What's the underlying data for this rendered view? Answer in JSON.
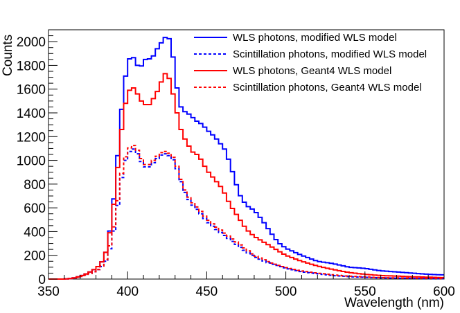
{
  "chart_data": {
    "type": "line",
    "style": "step-histogram",
    "title": "",
    "xlabel": "Wavelength (nm)",
    "ylabel": "Counts",
    "xlim": [
      350,
      600
    ],
    "ylim": [
      0,
      2100
    ],
    "x_ticks": [
      350,
      400,
      450,
      500,
      550,
      600
    ],
    "y_ticks": [
      0,
      200,
      400,
      600,
      800,
      1000,
      1200,
      1400,
      1600,
      1800,
      2000
    ],
    "legend_position": "top-right",
    "bin_width": 2.5,
    "series": [
      {
        "name": "WLS photons, modified WLS model",
        "color": "#0000ff",
        "dash": "solid",
        "x": [
          380,
          382.5,
          385,
          387.5,
          390,
          392.5,
          395,
          397.5,
          400,
          402.5,
          405,
          407.5,
          410,
          412.5,
          415,
          417.5,
          420,
          422.5,
          425,
          427.5,
          430,
          432.5,
          435,
          437.5,
          440,
          442.5,
          445,
          447.5,
          450,
          452.5,
          455,
          457.5,
          460,
          462.5,
          465,
          467.5,
          470,
          475,
          480,
          485,
          490,
          495,
          500,
          510,
          520,
          530,
          540,
          550,
          560,
          570,
          580,
          590,
          600
        ],
        "values": [
          90,
          120,
          170,
          280,
          530,
          820,
          1260,
          1600,
          1820,
          1890,
          1840,
          1760,
          1830,
          1870,
          1840,
          1920,
          1960,
          2020,
          2050,
          2000,
          1740,
          1480,
          1420,
          1400,
          1380,
          1340,
          1320,
          1300,
          1260,
          1230,
          1200,
          1160,
          1120,
          1070,
          950,
          860,
          730,
          620,
          580,
          500,
          400,
          310,
          260,
          200,
          150,
          130,
          100,
          90,
          70,
          60,
          50,
          40,
          35
        ]
      },
      {
        "name": "Scintillation photons, modified WLS model",
        "color": "#0000ff",
        "dash": "dashed",
        "x": [
          380,
          382.5,
          385,
          387.5,
          390,
          392.5,
          395,
          397.5,
          400,
          402.5,
          405,
          407.5,
          410,
          412.5,
          415,
          417.5,
          420,
          422.5,
          425,
          427.5,
          430,
          432.5,
          435,
          437.5,
          440,
          445,
          450,
          455,
          460,
          465,
          470,
          475,
          480,
          490,
          500,
          510,
          520,
          530,
          540,
          550,
          560,
          580,
          600
        ],
        "values": [
          70,
          90,
          120,
          180,
          330,
          480,
          760,
          950,
          1050,
          1100,
          1090,
          1020,
          960,
          930,
          960,
          1000,
          1030,
          1060,
          1050,
          1030,
          980,
          880,
          760,
          700,
          640,
          570,
          490,
          430,
          380,
          330,
          280,
          230,
          190,
          130,
          90,
          60,
          45,
          30,
          20,
          15,
          10,
          6,
          4
        ]
      },
      {
        "name": "WLS photons, Geant4 WLS model",
        "color": "#ff0000",
        "dash": "solid",
        "x": [
          380,
          382.5,
          385,
          387.5,
          390,
          392.5,
          395,
          397.5,
          400,
          402.5,
          405,
          407.5,
          410,
          412.5,
          415,
          417.5,
          420,
          422.5,
          425,
          427.5,
          430,
          432.5,
          435,
          437.5,
          440,
          445,
          450,
          455,
          460,
          465,
          470,
          475,
          480,
          490,
          500,
          510,
          520,
          530,
          540,
          550,
          560,
          580,
          600
        ],
        "values": [
          90,
          120,
          170,
          280,
          500,
          760,
          1120,
          1400,
          1560,
          1620,
          1600,
          1520,
          1480,
          1460,
          1480,
          1560,
          1600,
          1720,
          1740,
          1640,
          1480,
          1320,
          1200,
          1160,
          1080,
          1040,
          920,
          840,
          760,
          620,
          520,
          420,
          360,
          280,
          200,
          150,
          110,
          80,
          55,
          40,
          30,
          20,
          12
        ]
      },
      {
        "name": "Scintillation photons, Geant4 WLS model",
        "color": "#ff0000",
        "dash": "dashed",
        "x": [
          380,
          382.5,
          385,
          387.5,
          390,
          392.5,
          395,
          397.5,
          400,
          402.5,
          405,
          407.5,
          410,
          412.5,
          415,
          417.5,
          420,
          422.5,
          425,
          427.5,
          430,
          432.5,
          435,
          437.5,
          440,
          445,
          450,
          455,
          460,
          465,
          470,
          475,
          480,
          490,
          500,
          510,
          520,
          530,
          540,
          550,
          560,
          580,
          600
        ],
        "values": [
          70,
          90,
          130,
          200,
          360,
          520,
          800,
          980,
          1080,
          1130,
          1120,
          1050,
          980,
          950,
          980,
          1020,
          1050,
          1080,
          1070,
          1050,
          1000,
          900,
          780,
          720,
          660,
          590,
          510,
          450,
          400,
          350,
          300,
          250,
          200,
          140,
          100,
          70,
          50,
          35,
          25,
          18,
          12,
          8,
          5
        ]
      }
    ]
  }
}
